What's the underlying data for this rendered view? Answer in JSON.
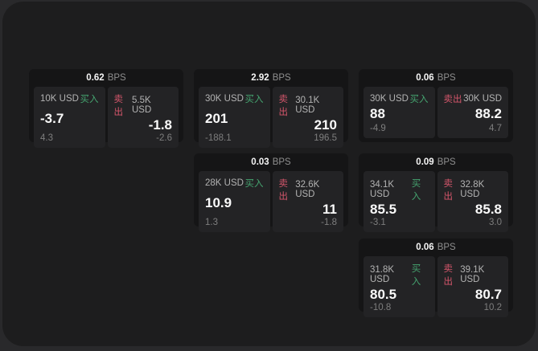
{
  "colors": {
    "buy_green": "#45a470",
    "sell_red": "#d4566b",
    "window_bg": "#1d1d1e",
    "card_bg": "#151516",
    "panel_bg": "#232325"
  },
  "cards": [
    {
      "header": {
        "value": "0.62",
        "unit": "BPS"
      },
      "buy": {
        "amount": "10K USD",
        "side_label": "买入",
        "value": "-3.7",
        "sub_value": "4.3"
      },
      "sell": {
        "side_label": "卖出",
        "amount": "5.5K USD",
        "value": "-1.8",
        "sub_value": "-2.6"
      }
    },
    {
      "header": {
        "value": "2.92",
        "unit": "BPS"
      },
      "buy": {
        "amount": "30K USD",
        "side_label": "买入",
        "value": "201",
        "sub_value": "-188.1"
      },
      "sell": {
        "side_label": "卖出",
        "amount": "30.1K USD",
        "value": "210",
        "sub_value": "196.5"
      }
    },
    {
      "header": {
        "value": "0.06",
        "unit": "BPS"
      },
      "buy": {
        "amount": "30K USD",
        "side_label": "买入",
        "value": "88",
        "sub_value": "-4.9"
      },
      "sell": {
        "side_label": "卖出",
        "amount": "30K USD",
        "value": "88.2",
        "sub_value": "4.7"
      }
    },
    {
      "header": {
        "value": "0.03",
        "unit": "BPS"
      },
      "buy": {
        "amount": "28K USD",
        "side_label": "买入",
        "value": "10.9",
        "sub_value": "1.3"
      },
      "sell": {
        "side_label": "卖出",
        "amount": "32.6K USD",
        "value": "11",
        "sub_value": "-1.8"
      }
    },
    {
      "header": {
        "value": "0.09",
        "unit": "BPS"
      },
      "buy": {
        "amount": "34.1K USD",
        "side_label": "买入",
        "value": "85.5",
        "sub_value": "-3.1"
      },
      "sell": {
        "side_label": "卖出",
        "amount": "32.8K USD",
        "value": "85.8",
        "sub_value": "3.0"
      }
    },
    {
      "header": {
        "value": "0.06",
        "unit": "BPS"
      },
      "buy": {
        "amount": "31.8K USD",
        "side_label": "买入",
        "value": "80.5",
        "sub_value": "-10.8"
      },
      "sell": {
        "side_label": "卖出",
        "amount": "39.1K USD",
        "value": "80.7",
        "sub_value": "10.2"
      }
    }
  ]
}
